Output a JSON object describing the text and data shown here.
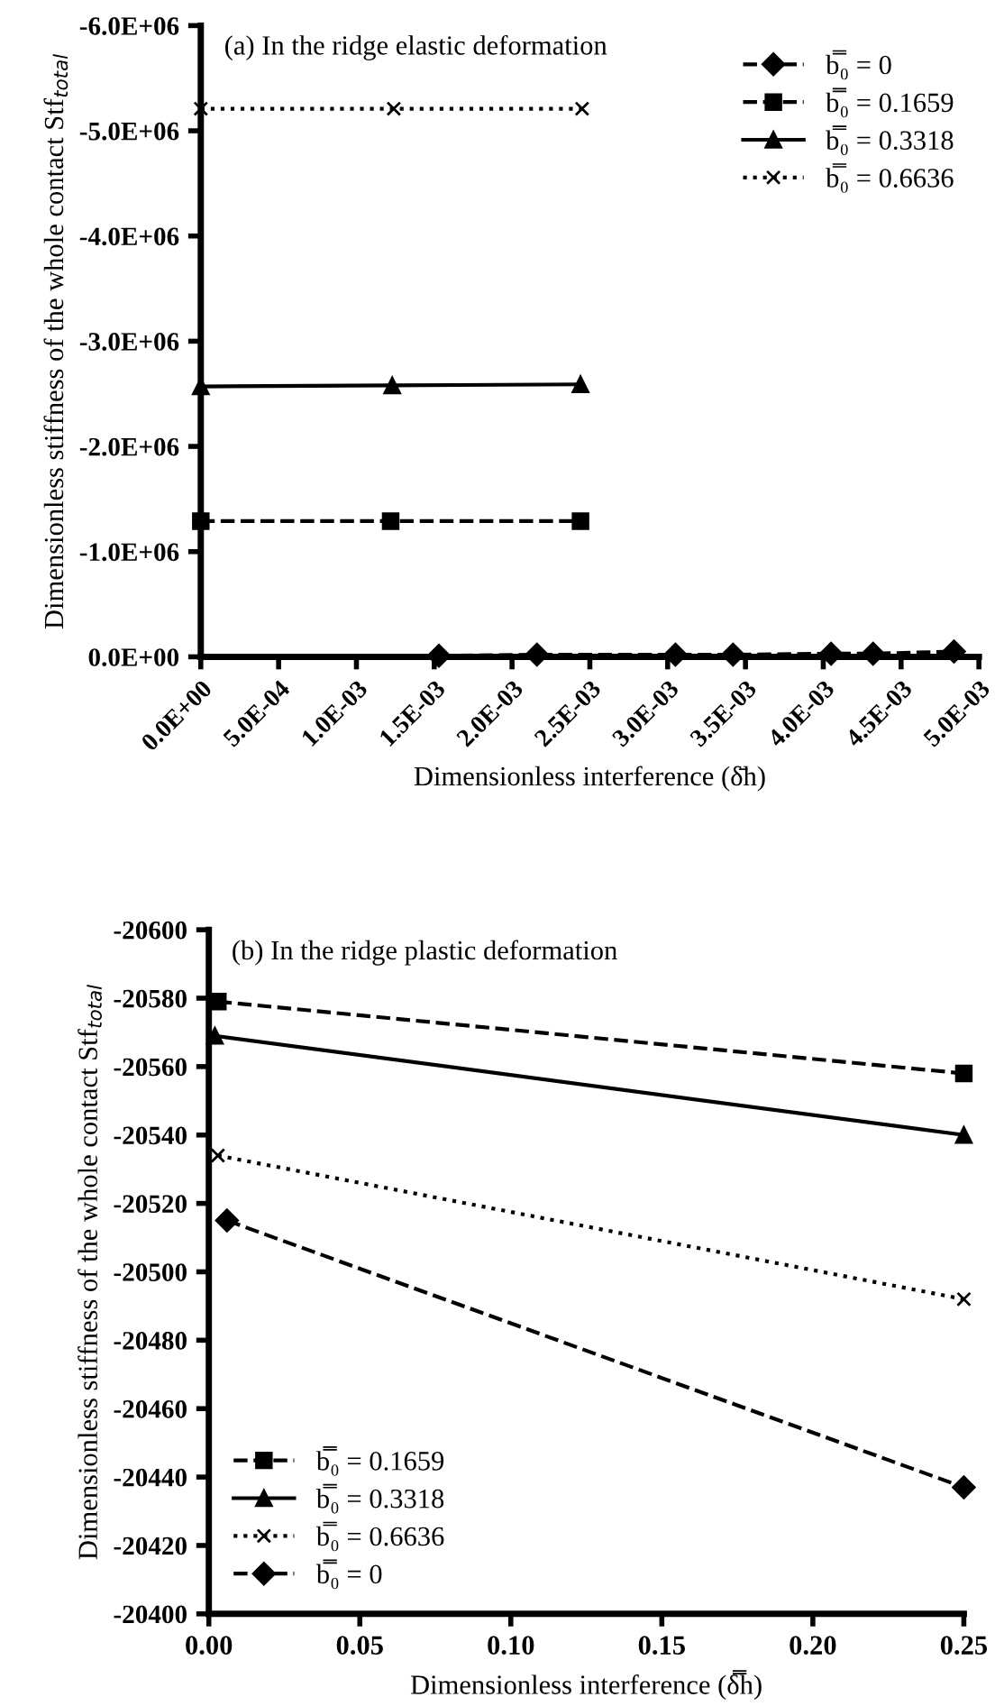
{
  "chart_data": [
    {
      "type": "line",
      "title": "(a) In the ridge elastic deformation",
      "xlabel": "Dimensionless interference (δ̄h)",
      "ylabel": "Dimensionless stiffness of the whole contact Stf$_{total}$",
      "xlim": [
        0,
        0.005
      ],
      "ylim": [
        0,
        -6000000
      ],
      "xticks": [
        {
          "value": 0,
          "label": "0.0E+00"
        },
        {
          "value": 0.0005,
          "label": "5.0E-04"
        },
        {
          "value": 0.001,
          "label": "1.0E-03"
        },
        {
          "value": 0.0015,
          "label": "1.5E-03"
        },
        {
          "value": 0.002,
          "label": "2.0E-03"
        },
        {
          "value": 0.0025,
          "label": "2.5E-03"
        },
        {
          "value": 0.003,
          "label": "3.0E-03"
        },
        {
          "value": 0.0035,
          "label": "3.5E-03"
        },
        {
          "value": 0.004,
          "label": "4.0E-03"
        },
        {
          "value": 0.0045,
          "label": "4.5E-03"
        },
        {
          "value": 0.005,
          "label": "5.0E-03"
        }
      ],
      "yticks": [
        {
          "value": 0,
          "label": "0.0E+00"
        },
        {
          "value": -1000000,
          "label": "-1.0E+06"
        },
        {
          "value": -2000000,
          "label": "-2.0E+06"
        },
        {
          "value": -3000000,
          "label": "-3.0E+06"
        },
        {
          "value": -4000000,
          "label": "-4.0E+06"
        },
        {
          "value": -5000000,
          "label": "-5.0E+06"
        },
        {
          "value": -6000000,
          "label": "-6.0E+06"
        }
      ],
      "grid": false,
      "legend": "top right",
      "series": [
        {
          "name": "b̿₀ = 0",
          "color": "#000000",
          "marker": "diamond",
          "line_style": "dashed",
          "x": [
            0.00153,
            0.00216,
            0.00305,
            0.00342,
            0.00405,
            0.00432,
            0.00484
          ],
          "values": [
            -10000,
            -20000,
            -20000,
            -20000,
            -30000,
            -30000,
            -50000
          ]
        },
        {
          "name": "b̿₀ = 0.1659",
          "color": "#000000",
          "marker": "square",
          "line_style": "dashed",
          "x": [
            0,
            0.00122,
            0.00244
          ],
          "values": [
            -1290000,
            -1290000,
            -1290000
          ]
        },
        {
          "name": "b̿₀ = 0.3318",
          "color": "#000000",
          "marker": "triangle",
          "line_style": "solid",
          "x": [
            0,
            0.00123,
            0.00244
          ],
          "values": [
            -2570000,
            -2580000,
            -2590000
          ]
        },
        {
          "name": "b̿₀ = 0.6636",
          "color": "#000000",
          "marker": "cross",
          "line_style": "dotted",
          "x": [
            0,
            0.00124,
            0.00245
          ],
          "values": [
            -5210000,
            -5210000,
            -5210000
          ]
        }
      ]
    },
    {
      "type": "line",
      "title": "(b) In the ridge plastic deformation",
      "xlabel": "Dimensionless interference (δ̿h)",
      "ylabel": "Dimensionless stiffness of the whole contact Stf$_{total}$",
      "xlim": [
        0,
        0.25
      ],
      "ylim": [
        -20400,
        -20600
      ],
      "xticks": [
        {
          "value": 0,
          "label": "0.00"
        },
        {
          "value": 0.05,
          "label": "0.05"
        },
        {
          "value": 0.1,
          "label": "0.10"
        },
        {
          "value": 0.15,
          "label": "0.15"
        },
        {
          "value": 0.2,
          "label": "0.20"
        },
        {
          "value": 0.25,
          "label": "0.25"
        }
      ],
      "yticks": [
        -20400,
        -20420,
        -20440,
        -20460,
        -20480,
        -20500,
        -20520,
        -20540,
        -20560,
        -20580,
        -20600
      ],
      "grid": false,
      "legend": "bottom left",
      "series": [
        {
          "name": "b̿₀ = 0.1659",
          "color": "#000000",
          "marker": "square",
          "line_style": "dashed",
          "x": [
            0.003,
            0.25
          ],
          "values": [
            -20579,
            -20558
          ]
        },
        {
          "name": "b̿₀ = 0.3318",
          "color": "#000000",
          "marker": "triangle",
          "line_style": "solid",
          "x": [
            0.002,
            0.25
          ],
          "values": [
            -20569,
            -20540
          ]
        },
        {
          "name": "b̿₀ = 0.6636",
          "color": "#000000",
          "marker": "cross",
          "line_style": "dotted",
          "x": [
            0.003,
            0.25
          ],
          "values": [
            -20534,
            -20492
          ]
        },
        {
          "name": "b̿₀ = 0",
          "color": "#000000",
          "marker": "diamond",
          "line_style": "dashed",
          "x": [
            0.006,
            0.25
          ],
          "values": [
            -20515,
            -20437
          ]
        }
      ]
    }
  ]
}
